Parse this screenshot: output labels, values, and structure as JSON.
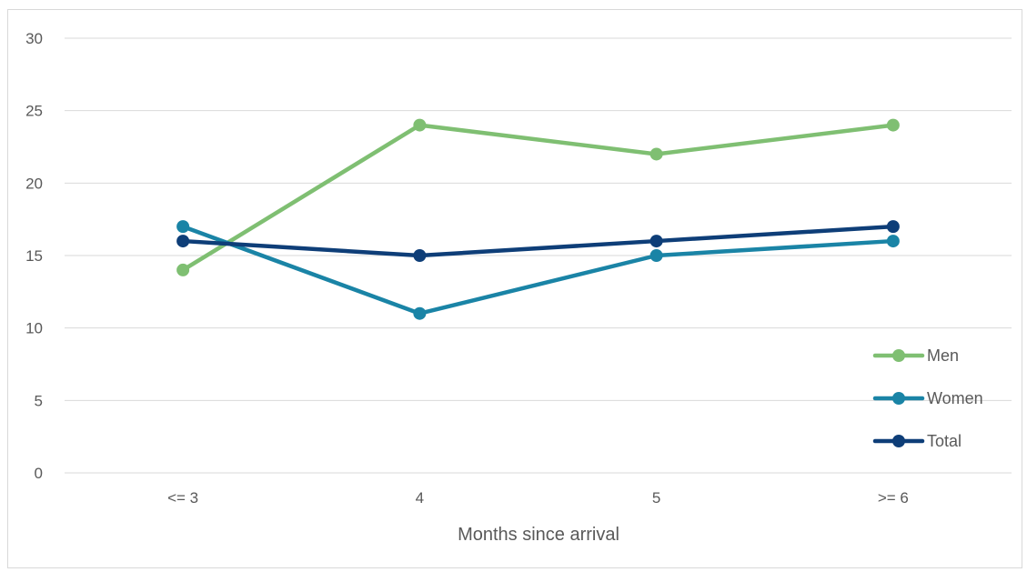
{
  "chart_data": {
    "type": "line",
    "title": "",
    "xlabel": "Months since arrival",
    "ylabel": "",
    "categories": [
      "<= 3",
      "4",
      "5",
      ">= 6"
    ],
    "ylim": [
      0,
      30
    ],
    "yticks": [
      0,
      5,
      10,
      15,
      20,
      25,
      30
    ],
    "grid": true,
    "legend_position": "right",
    "series": [
      {
        "name": "Men",
        "color": "#7fbf72",
        "values": [
          14,
          24,
          22,
          24
        ]
      },
      {
        "name": "Women",
        "color": "#1a84a6",
        "values": [
          17,
          11,
          15,
          16
        ]
      },
      {
        "name": "Total",
        "color": "#0e3e78",
        "values": [
          16,
          15,
          16,
          17
        ]
      }
    ]
  }
}
